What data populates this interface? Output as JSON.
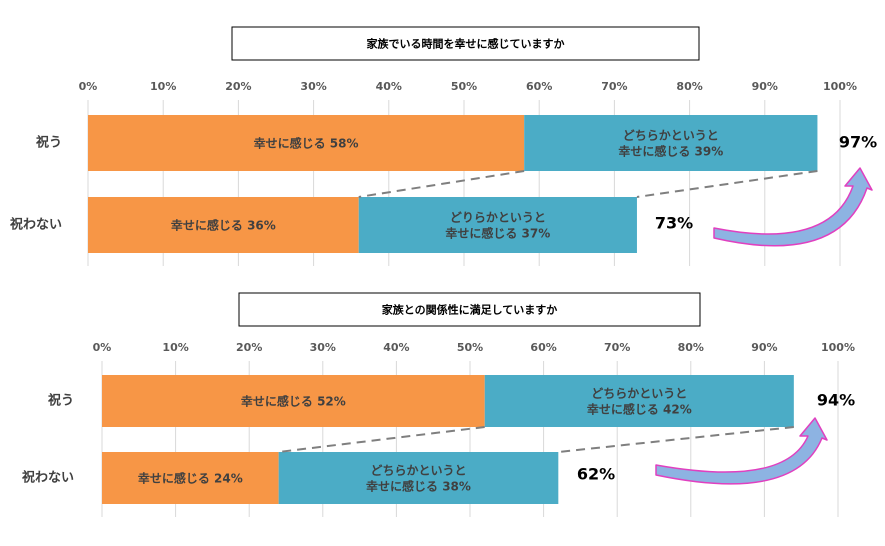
{
  "colors": {
    "seg1": "#f79646",
    "seg2": "#4bacc6",
    "grid": "#d9d9d9",
    "dash": "#7f7f7f",
    "arrow_fill": "#8db3e2",
    "arrow_stroke": "#e040c0"
  },
  "chart_data": [
    {
      "type": "bar",
      "orientation": "horizontal",
      "stacked": true,
      "title": "家族でいる時間を幸せに感じていますか",
      "xlim": [
        0,
        100
      ],
      "xticks": [
        "0%",
        "10%",
        "20%",
        "30%",
        "40%",
        "50%",
        "60%",
        "70%",
        "80%",
        "90%",
        "100%"
      ],
      "categories": [
        "祝う",
        "祝わない"
      ],
      "series": [
        {
          "values": [
            58,
            36
          ],
          "labels": [
            [
              "幸せに感じる  58%"
            ],
            [
              "幸せに感じる  36%"
            ]
          ]
        },
        {
          "values": [
            39,
            37
          ],
          "labels": [
            [
              "どちらかというと",
              "幸せに感じる  39%"
            ],
            [
              "どりらかというと",
              "幸せに感じる  37%"
            ]
          ]
        }
      ],
      "totals": [
        "97%",
        "73%"
      ]
    },
    {
      "type": "bar",
      "orientation": "horizontal",
      "stacked": true,
      "title": "家族との関係性に満足していますか",
      "xlim": [
        0,
        100
      ],
      "xticks": [
        "0%",
        "10%",
        "20%",
        "30%",
        "40%",
        "50%",
        "60%",
        "70%",
        "80%",
        "90%",
        "100%"
      ],
      "categories": [
        "祝う",
        "祝わない"
      ],
      "series": [
        {
          "values": [
            52,
            24
          ],
          "labels": [
            [
              "幸せに感じる  52%"
            ],
            [
              "幸せに感じる  24%"
            ]
          ]
        },
        {
          "values": [
            42,
            38
          ],
          "labels": [
            [
              "どちらかというと",
              "幸せに感じる  42%"
            ],
            [
              "どちらかというと",
              "幸せに感じる  38%"
            ]
          ]
        }
      ],
      "totals": [
        "94%",
        "62%"
      ]
    }
  ]
}
